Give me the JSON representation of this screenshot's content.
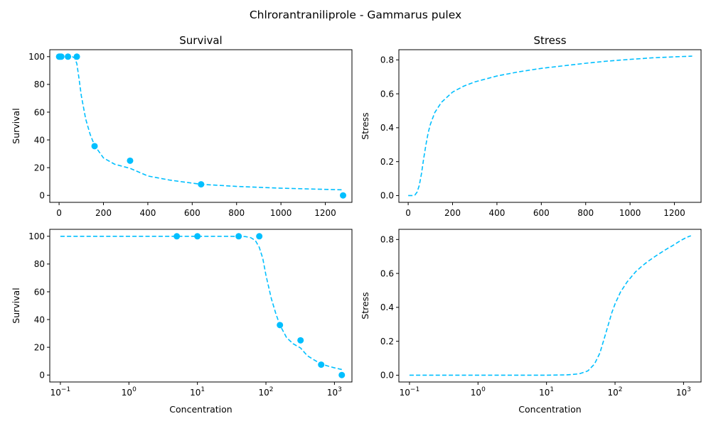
{
  "figure": {
    "suptitle": "Chlrorantraniliprole - Gammarus pulex",
    "color": "#00bfff"
  },
  "chart_data": [
    {
      "type": "scatter",
      "title": "Survival",
      "xlabel": "",
      "ylabel": "Survival",
      "xscale": "linear",
      "xlim": [
        -42,
        1320
      ],
      "ylim": [
        -5,
        105
      ],
      "xticks": [
        0,
        200,
        400,
        600,
        800,
        1000,
        1200
      ],
      "yticks": [
        0,
        20,
        40,
        60,
        80,
        100
      ],
      "grid": false,
      "series": [
        {
          "kind": "points",
          "x": [
            0.1,
            5,
            10,
            40,
            80,
            160,
            320,
            640,
            1280
          ],
          "y": [
            100,
            100,
            100,
            100,
            100,
            35.5,
            25,
            8,
            0
          ]
        },
        {
          "kind": "fitted-curve",
          "x": [
            0.1,
            20,
            40,
            60,
            70,
            80,
            90,
            100,
            120,
            140,
            160,
            200,
            250,
            320,
            400,
            500,
            640,
            800,
            1000,
            1280
          ],
          "y": [
            100,
            100,
            100,
            99.9,
            99,
            95,
            84,
            72,
            55,
            44,
            36,
            27,
            22.5,
            19.5,
            14,
            11,
            8,
            6.5,
            5.2,
            4
          ]
        }
      ]
    },
    {
      "type": "line",
      "title": "Stress",
      "xlabel": "",
      "ylabel": "Stress",
      "xscale": "linear",
      "xlim": [
        -42,
        1320
      ],
      "ylim": [
        -0.04,
        0.86
      ],
      "xticks": [
        0,
        200,
        400,
        600,
        800,
        1000,
        1200
      ],
      "yticks": [
        0.0,
        0.2,
        0.4,
        0.6,
        0.8
      ],
      "grid": false,
      "series": [
        {
          "kind": "fitted-curve",
          "x": [
            0.1,
            20,
            30,
            40,
            50,
            60,
            70,
            80,
            90,
            100,
            120,
            150,
            200,
            250,
            300,
            400,
            500,
            600,
            700,
            800,
            900,
            1000,
            1100,
            1200,
            1280
          ],
          "y": [
            0,
            0,
            0.003,
            0.02,
            0.06,
            0.13,
            0.22,
            0.3,
            0.37,
            0.42,
            0.49,
            0.55,
            0.61,
            0.645,
            0.67,
            0.705,
            0.73,
            0.75,
            0.765,
            0.78,
            0.793,
            0.803,
            0.812,
            0.818,
            0.822
          ]
        }
      ]
    },
    {
      "type": "scatter",
      "title": "",
      "xlabel": "Concentration",
      "ylabel": "Survival",
      "xscale": "log",
      "xlim": [
        0.07,
        1800
      ],
      "ylim": [
        -5,
        105
      ],
      "xticks": [
        0.1,
        1,
        10,
        100,
        1000
      ],
      "xticklabels": [
        {
          "base": "10",
          "exp": "−1"
        },
        {
          "base": "10",
          "exp": "0"
        },
        {
          "base": "10",
          "exp": "1"
        },
        {
          "base": "10",
          "exp": "2"
        },
        {
          "base": "10",
          "exp": "3"
        }
      ],
      "yticks": [
        0,
        20,
        40,
        60,
        80,
        100
      ],
      "grid": false,
      "series": [
        {
          "kind": "points",
          "x": [
            5,
            10,
            40,
            80,
            160,
            320,
            640,
            1280
          ],
          "y": [
            100,
            100,
            100,
            100,
            36,
            25,
            7.5,
            0
          ]
        },
        {
          "kind": "fitted-curve",
          "x": [
            0.1,
            1,
            10,
            30,
            50,
            60,
            70,
            80,
            90,
            100,
            120,
            140,
            160,
            200,
            250,
            320,
            400,
            500,
            640,
            800,
            1000,
            1280
          ],
          "y": [
            100,
            100,
            100,
            100,
            99.8,
            99,
            97,
            92,
            84,
            72,
            55,
            44,
            36,
            27,
            22.5,
            19.5,
            14,
            11,
            8,
            6.5,
            5.2,
            4
          ]
        }
      ]
    },
    {
      "type": "line",
      "title": "",
      "xlabel": "Concentration",
      "ylabel": "Stress",
      "xscale": "log",
      "xlim": [
        0.07,
        1800
      ],
      "ylim": [
        -0.04,
        0.86
      ],
      "xticks": [
        0.1,
        1,
        10,
        100,
        1000
      ],
      "xticklabels": [
        {
          "base": "10",
          "exp": "−1"
        },
        {
          "base": "10",
          "exp": "0"
        },
        {
          "base": "10",
          "exp": "1"
        },
        {
          "base": "10",
          "exp": "2"
        },
        {
          "base": "10",
          "exp": "3"
        }
      ],
      "yticks": [
        0.0,
        0.2,
        0.4,
        0.6,
        0.8
      ],
      "grid": false,
      "series": [
        {
          "kind": "fitted-curve",
          "x": [
            0.1,
            1,
            10,
            20,
            30,
            40,
            50,
            60,
            70,
            80,
            90,
            100,
            120,
            150,
            200,
            250,
            300,
            400,
            500,
            600,
            700,
            800,
            900,
            1000,
            1100,
            1200,
            1280
          ],
          "y": [
            0,
            0,
            0,
            0.002,
            0.008,
            0.025,
            0.065,
            0.13,
            0.22,
            0.3,
            0.37,
            0.42,
            0.49,
            0.55,
            0.61,
            0.645,
            0.67,
            0.705,
            0.73,
            0.75,
            0.765,
            0.78,
            0.793,
            0.803,
            0.812,
            0.818,
            0.822
          ]
        }
      ]
    }
  ]
}
